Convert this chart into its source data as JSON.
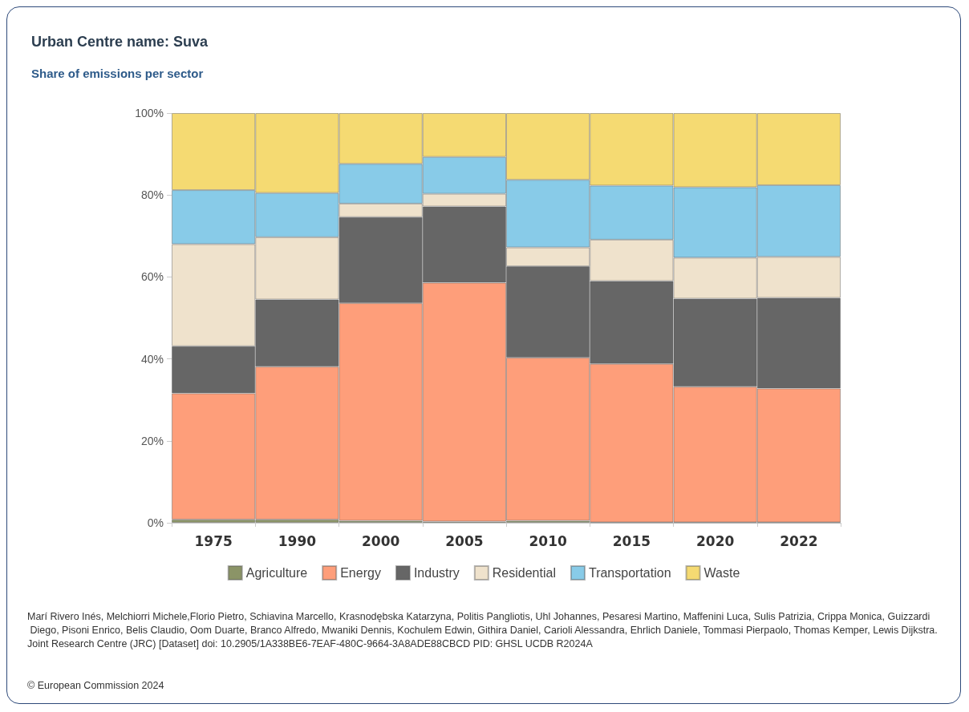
{
  "chart_data": {
    "type": "bar",
    "title": "Urban Centre name: Suva",
    "subtitle": "Share of emissions per sector",
    "stacked": true,
    "categories": [
      "1975",
      "1990",
      "2000",
      "2005",
      "2010",
      "2015",
      "2020",
      "2022"
    ],
    "series": [
      {
        "name": "Agriculture",
        "color": "#8b9467",
        "values": [
          0.8,
          0.8,
          0.5,
          0.3,
          0.5,
          0.1,
          0.1,
          0.1
        ]
      },
      {
        "name": "Energy",
        "color": "#fe9e7a",
        "values": [
          30.8,
          37.3,
          53.1,
          58.3,
          39.8,
          38.7,
          33.1,
          32.7
        ]
      },
      {
        "name": "Industry",
        "color": "#666666",
        "values": [
          11.5,
          16.4,
          21.0,
          18.6,
          22.3,
          20.2,
          21.5,
          22.1
        ]
      },
      {
        "name": "Residential",
        "color": "#efe2cc",
        "values": [
          24.9,
          15.2,
          3.3,
          3.1,
          4.6,
          10.1,
          10.0,
          10.0
        ]
      },
      {
        "name": "Transportation",
        "color": "#88cbe8",
        "values": [
          13.2,
          10.8,
          9.7,
          9.0,
          16.5,
          13.2,
          17.2,
          17.5
        ]
      },
      {
        "name": "Waste",
        "color": "#f5da72",
        "values": [
          18.8,
          19.5,
          12.4,
          10.7,
          16.3,
          17.7,
          18.1,
          17.6
        ]
      }
    ],
    "ylim": [
      0,
      100
    ],
    "yticks": [
      {
        "value": 0,
        "label": "0%"
      },
      {
        "value": 20,
        "label": "20%"
      },
      {
        "value": 40,
        "label": "40%"
      },
      {
        "value": 60,
        "label": "60%"
      },
      {
        "value": 80,
        "label": "80%"
      },
      {
        "value": 100,
        "label": "100%"
      }
    ],
    "grid": false,
    "legend": "bottom",
    "annotations": [
      "Marí Rivero Inés, Melchiorri Michele,Florio Pietro, Schiavina Marcello, Krasnodębska Katarzyna, Politis Pangliotis, Uhl Johannes, Pesaresi Martino, Maffenini Luca, Sulis Patrizia, Crippa Monica, Guizzardi Diego, Pisoni Enrico, Belis Claudio, Oom Duarte, Branco Alfredo, Mwaniki Dennis, Kochulem Edwin, Githira Daniel, Carioli Alessandra, Ehrlich Daniele, Tommasi Pierpaolo, Thomas Kemper, Lewis Dijkstra. Joint Research Centre (JRC) [Dataset] doi: 10.2905/1A338BE6-7EAF-480C-9664-3A8ADE88CBCD PID: GHSL UCDB R2024A",
      "© European Commission 2024"
    ]
  }
}
